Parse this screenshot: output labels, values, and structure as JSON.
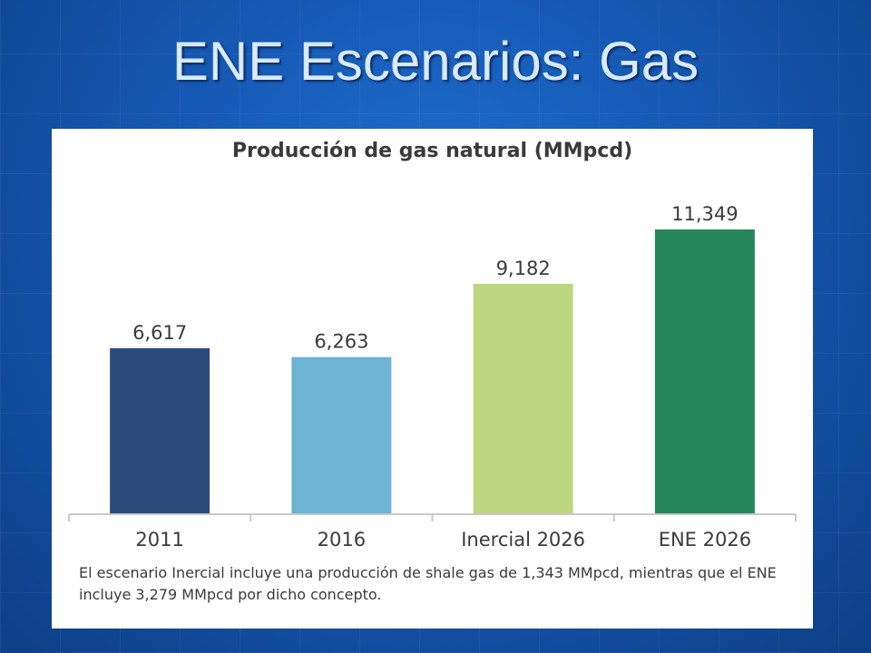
{
  "slide": {
    "title": "ENE Escenarios: Gas"
  },
  "chart_data": {
    "type": "bar",
    "title": "Producción de gas natural (MMpcd)",
    "categories": [
      "2011",
      "2016",
      "Inercial 2026",
      "ENE 2026"
    ],
    "values": [
      6617,
      6263,
      9182,
      11349
    ],
    "value_labels": [
      "6,617",
      "6,263",
      "9,182",
      "11,349"
    ],
    "colors": [
      "#2b4b7c",
      "#6db3d2",
      "#bcd77f",
      "#26875c"
    ],
    "xlabel": "",
    "ylabel": "",
    "ylim": [
      0,
      11349
    ],
    "grid": false,
    "legend": "none",
    "note": "El escenario Inercial incluye una producción de shale gas de 1,343 MMpcd, mientras que el ENE incluye 3,279 MMpcd por dicho concepto."
  }
}
